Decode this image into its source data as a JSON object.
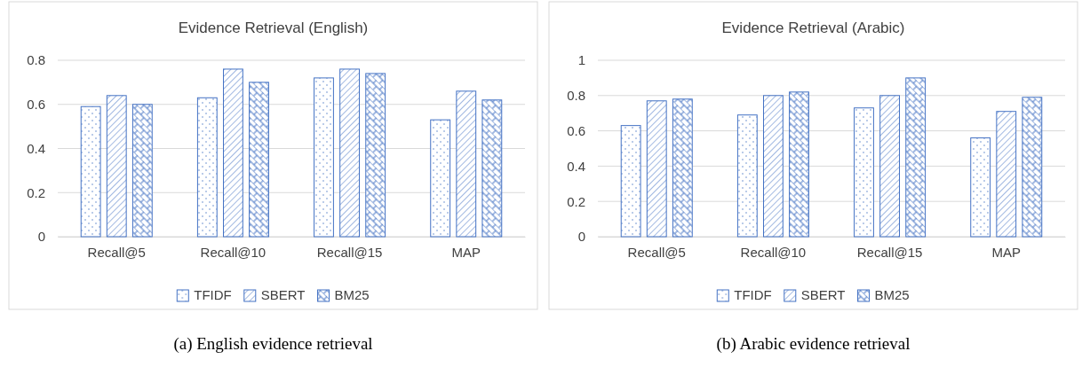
{
  "chart_data": [
    {
      "type": "bar",
      "title": "Evidence Retrieval (English)",
      "categories": [
        "Recall@5",
        "Recall@10",
        "Recall@15",
        "MAP"
      ],
      "series": [
        {
          "name": "TFIDF",
          "color": "#4472c4",
          "values": [
            0.59,
            0.63,
            0.72,
            0.53
          ]
        },
        {
          "name": "SBERT",
          "color": "#4472c4",
          "values": [
            0.64,
            0.76,
            0.76,
            0.66
          ]
        },
        {
          "name": "BM25",
          "color": "#4472c4",
          "values": [
            0.6,
            0.7,
            0.74,
            0.62
          ]
        }
      ],
      "ylim": [
        0,
        0.8
      ],
      "yticks": [
        0,
        0.2,
        0.4,
        0.6,
        0.8
      ],
      "grid": "y",
      "legend": "bottom",
      "annotations": [
        "(a) English evidence retrieval"
      ]
    },
    {
      "type": "bar",
      "title": "Evidence Retrieval (Arabic)",
      "categories": [
        "Recall@5",
        "Recall@10",
        "Recall@15",
        "MAP"
      ],
      "series": [
        {
          "name": "TFIDF",
          "color": "#4472c4",
          "values": [
            0.63,
            0.69,
            0.73,
            0.56
          ]
        },
        {
          "name": "SBERT",
          "color": "#4472c4",
          "values": [
            0.77,
            0.8,
            0.8,
            0.71
          ]
        },
        {
          "name": "BM25",
          "color": "#4472c4",
          "values": [
            0.78,
            0.82,
            0.9,
            0.79
          ]
        }
      ],
      "ylim": [
        0,
        1
      ],
      "yticks": [
        0,
        0.2,
        0.4,
        0.6,
        0.8,
        1
      ],
      "grid": "y",
      "legend": "bottom",
      "annotations": [
        "(b) Arabic evidence retrieval"
      ]
    }
  ]
}
